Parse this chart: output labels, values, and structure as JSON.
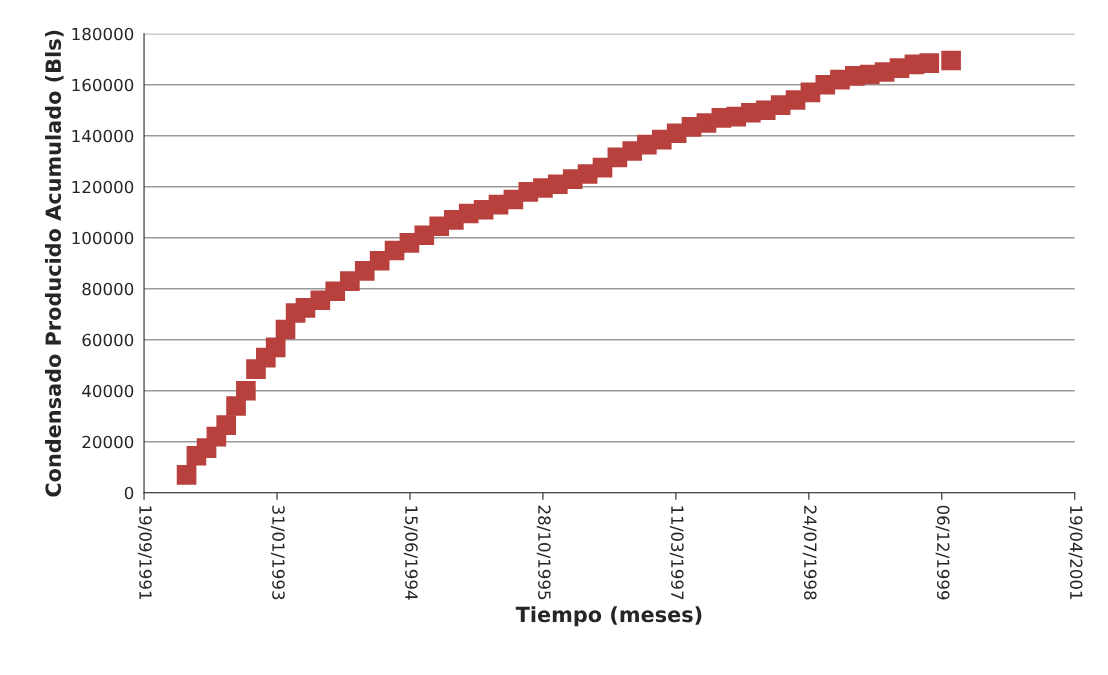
{
  "chart_data": {
    "type": "scatter",
    "xlabel": "Tiempo (meses)",
    "ylabel": "Condensado Producido Acumulado (Bls)",
    "x": [
      "1992-02-26",
      "1992-04-03",
      "1992-05-11",
      "1992-06-17",
      "1992-07-24",
      "1992-08-30",
      "1992-10-06",
      "1992-11-13",
      "1992-12-20",
      "1993-01-26",
      "1993-03-04",
      "1993-04-11",
      "1993-05-18",
      "1993-07-13",
      "1993-09-07",
      "1993-11-01",
      "1993-12-27",
      "1994-02-21",
      "1994-04-18",
      "1994-06-13",
      "1994-08-08",
      "1994-10-03",
      "1994-11-27",
      "1995-01-22",
      "1995-03-19",
      "1995-05-14",
      "1995-07-09",
      "1995-09-03",
      "1995-10-28",
      "1995-12-23",
      "1996-02-17",
      "1996-04-13",
      "1996-06-08",
      "1996-08-03",
      "1996-09-28",
      "1996-11-22",
      "1997-01-17",
      "1997-03-14",
      "1997-05-09",
      "1997-07-04",
      "1997-08-29",
      "1997-10-24",
      "1997-12-18",
      "1998-02-12",
      "1998-04-09",
      "1998-06-04",
      "1998-07-30",
      "1998-09-24",
      "1998-11-18",
      "1999-01-13",
      "1999-03-10",
      "1999-05-05",
      "1999-06-30",
      "1999-08-25",
      "1999-10-20",
      "2000-01-10"
    ],
    "series": [
      {
        "color": "#b8413e",
        "values": [
          7000,
          14500,
          17500,
          22000,
          26500,
          34000,
          40000,
          48500,
          53000,
          57000,
          64000,
          70500,
          72500,
          75500,
          79000,
          83000,
          87000,
          91000,
          95000,
          98000,
          101000,
          104500,
          107000,
          109500,
          111000,
          113000,
          115000,
          118000,
          119500,
          121000,
          123000,
          125000,
          127500,
          131500,
          134000,
          136500,
          138500,
          141000,
          143500,
          145000,
          147000,
          147500,
          149000,
          150000,
          152000,
          154000,
          157000,
          160000,
          162000,
          163500,
          164000,
          165000,
          166500,
          168000,
          168500,
          169500
        ]
      }
    ],
    "marker": "square",
    "grid": "y",
    "legend": false,
    "xlim": [
      "1991-09-19",
      "2001-04-19"
    ],
    "xticks": [
      {
        "value": "1991-09-19",
        "label": "19/09/1991"
      },
      {
        "value": "1993-01-31",
        "label": "31/01/1993"
      },
      {
        "value": "1994-06-15",
        "label": "15/06/1994"
      },
      {
        "value": "1995-10-28",
        "label": "28/10/1995"
      },
      {
        "value": "1997-03-11",
        "label": "11/03/1997"
      },
      {
        "value": "1998-07-24",
        "label": "24/07/1998"
      },
      {
        "value": "1999-12-06",
        "label": "06/12/1999"
      },
      {
        "value": "2001-04-19",
        "label": "19/04/2001"
      }
    ],
    "ylim": [
      0,
      180000
    ],
    "yticks": [
      0,
      20000,
      40000,
      60000,
      80000,
      100000,
      120000,
      140000,
      160000,
      180000
    ]
  }
}
